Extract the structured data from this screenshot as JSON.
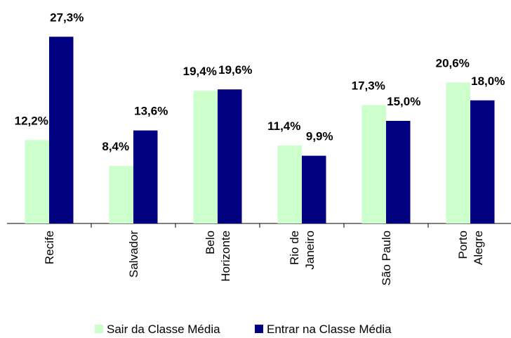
{
  "chart_data": {
    "type": "bar",
    "categories": [
      "Recife",
      "Salvador",
      "Belo\nHorizonte",
      "Rio de\nJaneiro",
      "São Paulo",
      "Porto\nAlegre"
    ],
    "series": [
      {
        "name": "Sair da Classe Média",
        "color": "#ccffcc",
        "values": [
          12.2,
          8.4,
          19.4,
          11.4,
          17.3,
          20.6
        ],
        "value_labels": [
          "12,2%",
          "8,4%",
          "19,4%",
          "11,4%",
          "17,3%",
          "20,6%"
        ]
      },
      {
        "name": "Entrar na Classe Média",
        "color": "#000080",
        "values": [
          27.3,
          13.6,
          19.6,
          9.9,
          15.0,
          18.0
        ],
        "value_labels": [
          "27,3%",
          "13,6%",
          "19,6%",
          "9,9%",
          "15,0%",
          "18,0%"
        ]
      }
    ],
    "ylim": [
      0,
      30
    ],
    "legend": "bottom"
  }
}
